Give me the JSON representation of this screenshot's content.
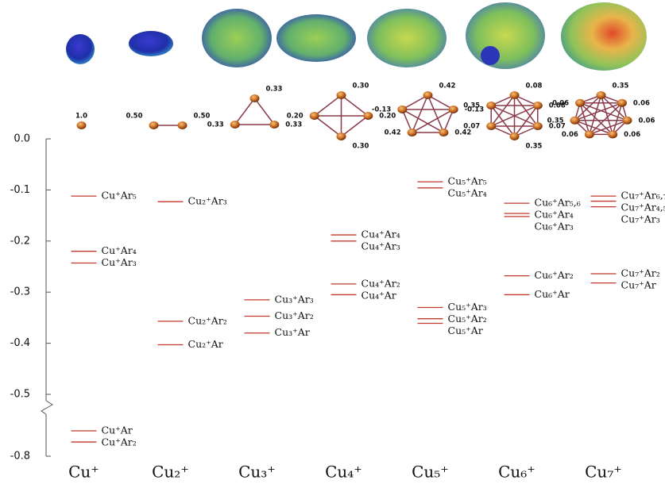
{
  "chart_data": {
    "type": "levels",
    "categories": [
      "Cu⁺",
      "Cu₂⁺",
      "Cu₃⁺",
      "Cu₄⁺",
      "Cu₅⁺",
      "Cu₆⁺",
      "Cu₇⁺"
    ],
    "ylim": [
      -0.8,
      0
    ],
    "ybreak": -0.5,
    "yticks": [
      {
        "value": 0,
        "label": "0.0"
      },
      -0.1,
      -0.2,
      -0.3,
      -0.4,
      -0.5,
      -0.8
    ],
    "color": "#c0392b",
    "groups": [
      {
        "values": [
          -0.112,
          -0.22,
          -0.243,
          -0.677,
          -0.731
        ],
        "labels": [
          "Cu⁺Ar₅",
          "Cu⁺Ar₄",
          "Cu⁺Ar₃",
          "Cu⁺Ar",
          "Cu⁺Ar₂"
        ],
        "charges": [
          "1.0"
        ]
      },
      {
        "values": [
          -0.123,
          -0.357,
          -0.403
        ],
        "labels": [
          "Cu₂⁺Ar₃",
          "Cu₂⁺Ar₂",
          "Cu₂⁺Ar"
        ],
        "charges": [
          "0.50",
          "0.50"
        ]
      },
      {
        "values": [
          -0.315,
          -0.347,
          -0.38
        ],
        "labels": [
          "Cu₃⁺Ar₃",
          "Cu₃⁺Ar₂",
          "Cu₃⁺Ar"
        ],
        "charges": [
          "0.33",
          "0.33",
          "0.33"
        ]
      },
      {
        "values": [
          -0.188,
          -0.2,
          -0.284,
          -0.305
        ],
        "labels": [
          "Cu₄⁺Ar₄",
          "Cu₄⁺Ar₃",
          "Cu₄⁺Ar₂",
          "Cu₄⁺Ar"
        ],
        "charges": [
          "0.30",
          "0.20",
          "0.30",
          "0.20"
        ]
      },
      {
        "values": [
          -0.084,
          -0.096,
          -0.33,
          -0.352,
          -0.361
        ],
        "labels": [
          "Cu₅⁺Ar₅",
          "Cu₅⁺Ar₄",
          "Cu₅⁺Ar₃",
          "Cu₅⁺Ar₂",
          "Cu₅⁺Ar"
        ],
        "charges": [
          "0.42",
          "-0.13",
          "0.42",
          "0.42",
          "-0.13"
        ]
      },
      {
        "values": [
          -0.126,
          -0.146,
          -0.152,
          -0.268,
          -0.305
        ],
        "labels": [
          "Cu₆⁺Ar₅,₆",
          "Cu₆⁺Ar₄",
          "Cu₆⁺Ar₃",
          "Cu₆⁺Ar₂",
          "Cu₆⁺Ar"
        ],
        "charges": [
          "0.08",
          "0.08",
          "0.07",
          "0.35",
          "0.07",
          "0.35"
        ]
      },
      {
        "values": [
          -0.112,
          -0.122,
          -0.133,
          -0.264,
          -0.282
        ],
        "labels": [
          "Cu₇⁺Ar₆,₇",
          "Cu₇⁺Ar₄,₅",
          "Cu₇⁺Ar₃",
          "Cu₇⁺Ar₂",
          "Cu₇⁺Ar"
        ],
        "charges": [
          "0.35",
          "0.06",
          "0.06",
          "0.06",
          "0.06",
          "0.35",
          "0.06"
        ]
      }
    ]
  }
}
